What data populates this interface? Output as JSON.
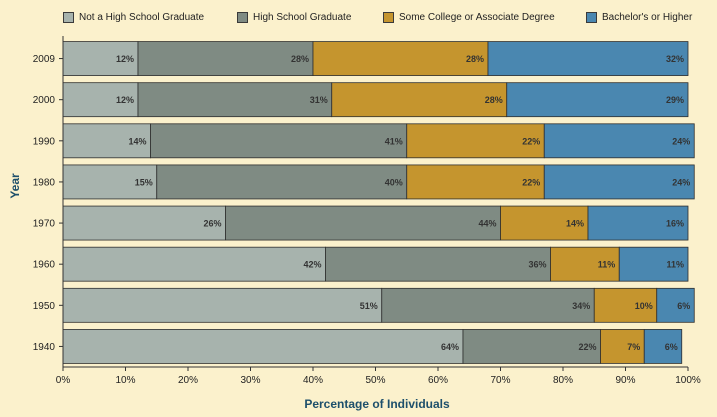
{
  "chart_data": {
    "type": "bar",
    "orientation": "horizontal",
    "stacked": true,
    "categories": [
      "2009",
      "2000",
      "1990",
      "1980",
      "1970",
      "1960",
      "1950",
      "1940"
    ],
    "series": [
      {
        "name": "Not a High School Graduate",
        "values": [
          12,
          12,
          14,
          15,
          26,
          42,
          51,
          64
        ],
        "color": "#a7b3ad"
      },
      {
        "name": "High School Graduate",
        "values": [
          28,
          31,
          41,
          40,
          44,
          36,
          34,
          22
        ],
        "color": "#7f8b83"
      },
      {
        "name": "Some College or Associate Degree",
        "values": [
          28,
          28,
          22,
          22,
          14,
          11,
          10,
          7
        ],
        "color": "#c5952e"
      },
      {
        "name": "Bachelor's or Higher",
        "values": [
          32,
          29,
          24,
          24,
          16,
          11,
          6,
          6
        ],
        "color": "#4a87b0"
      }
    ],
    "xlabel": "Percentage of Individuals",
    "ylabel": "Year",
    "xlim": [
      0,
      100
    ],
    "xticks": [
      "0%",
      "10%",
      "20%",
      "30%",
      "40%",
      "50%",
      "60%",
      "70%",
      "80%",
      "90%",
      "100%"
    ],
    "legend_position": "top",
    "grid": false
  }
}
